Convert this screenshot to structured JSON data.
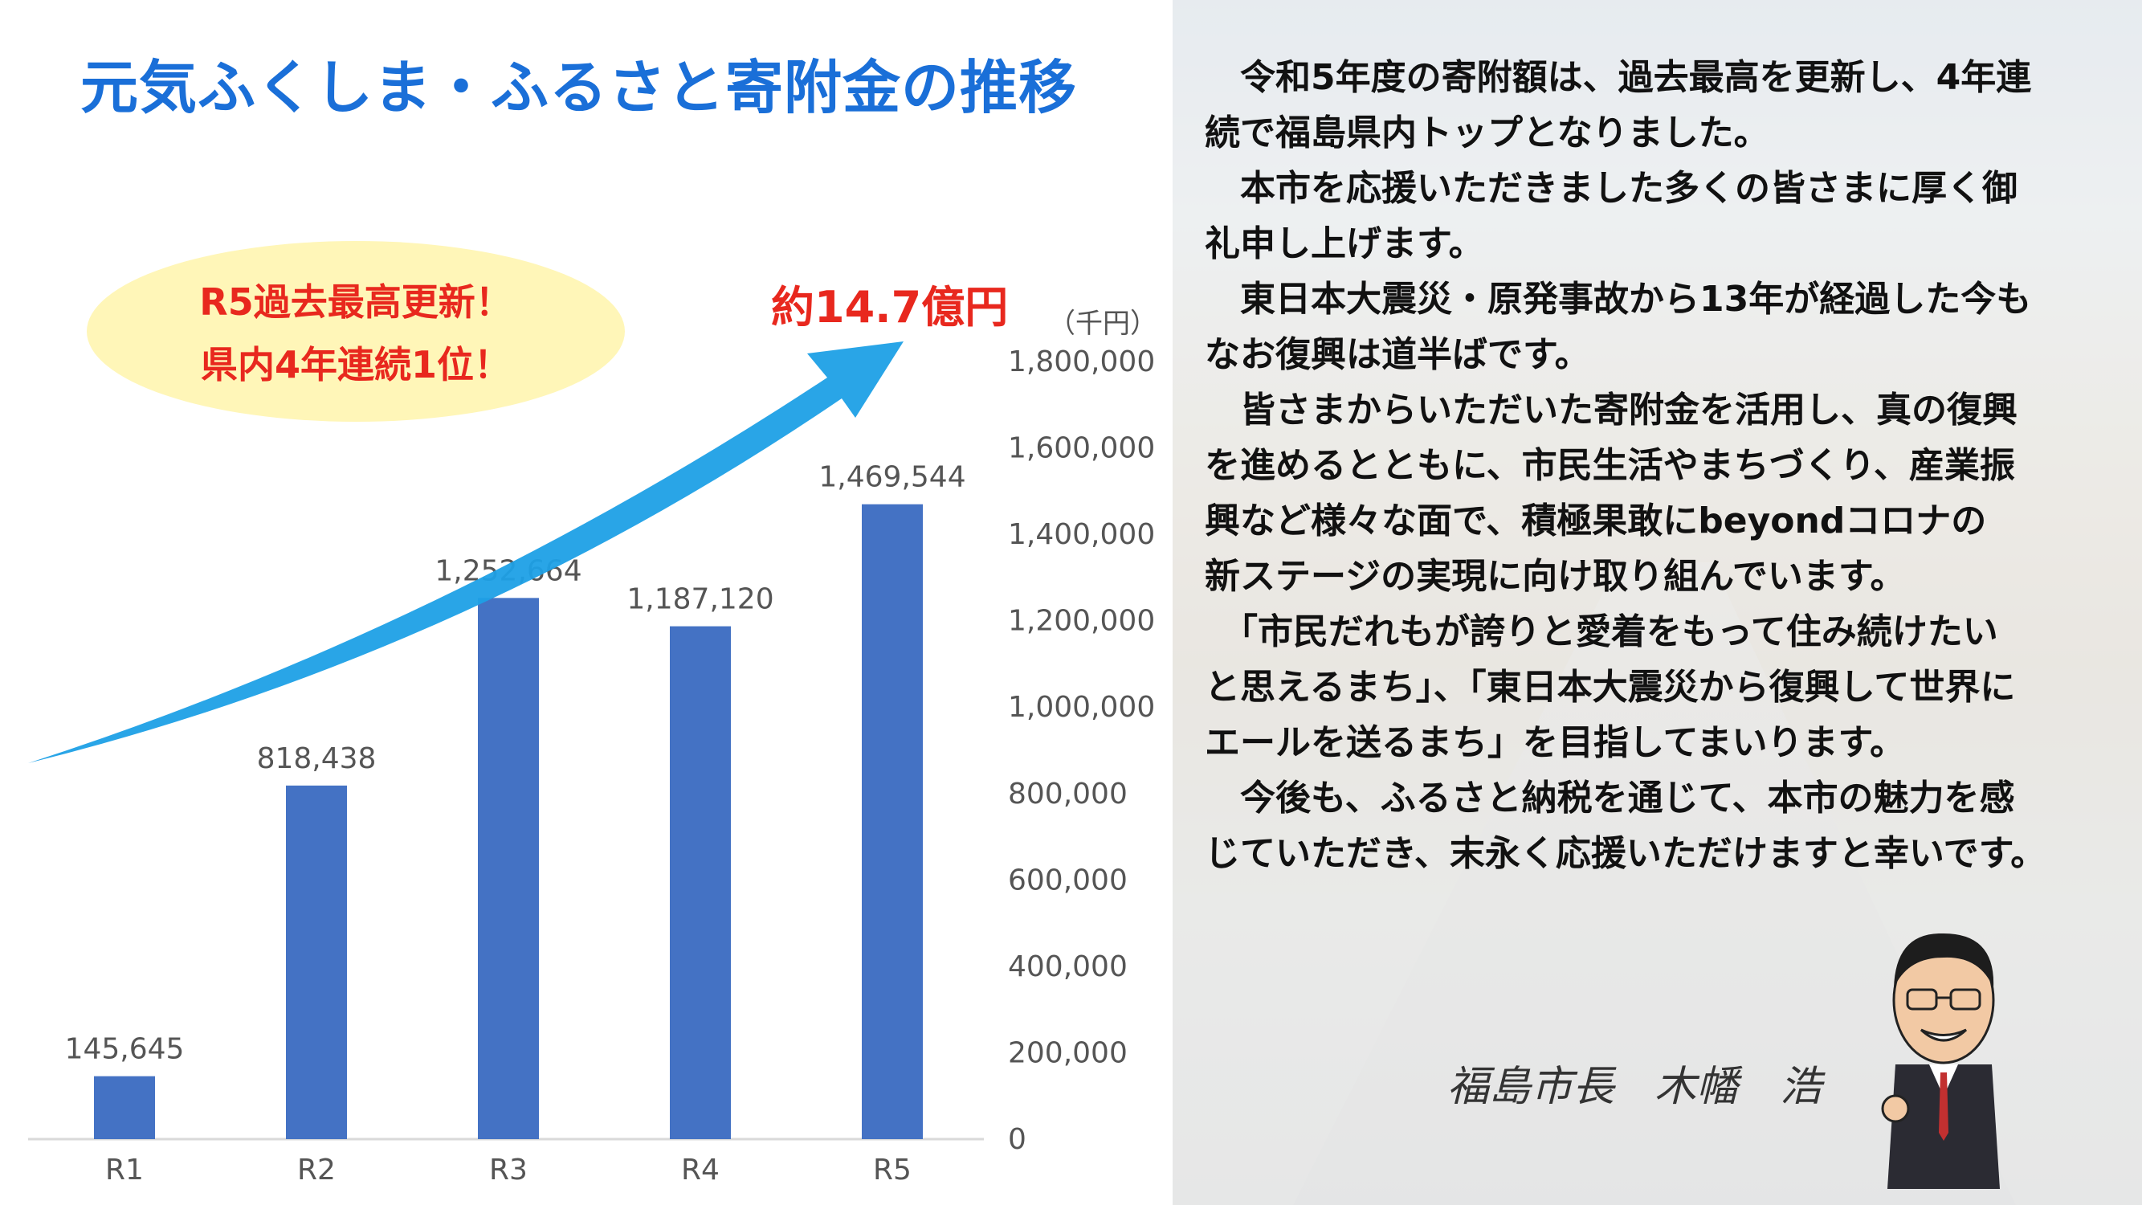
{
  "title": "元気ふくしま・ふるさと寄附金の推移",
  "callout": {
    "line1": "R5過去最高更新！",
    "line2": "県内4年連続1位！"
  },
  "headline": "約14.7億円",
  "unit": "（千円）",
  "chart_data": {
    "type": "bar",
    "categories": [
      "R1",
      "R2",
      "R3",
      "R4",
      "R5"
    ],
    "values": [
      145645,
      818438,
      1252664,
      1187120,
      1469544
    ],
    "value_labels": [
      "145,645",
      "818,438",
      "1,252,664",
      "1,187,120",
      "1,469,544"
    ],
    "yticks": [
      "0",
      "200,000",
      "400,000",
      "600,000",
      "800,000",
      "1,000,000",
      "1,200,000",
      "1,400,000",
      "1,600,000",
      "1,800,000"
    ],
    "ylim": [
      0,
      1800000
    ],
    "y_axis_side": "right",
    "grid": false,
    "bar_color": "#4472c4",
    "arrow_color": "#1ea0e6"
  },
  "message": [
    "　令和5年度の寄附額は、過去最高を更新し、4年連",
    "続で福島県内トップとなりました。",
    "　本市を応援いただきました多くの皆さまに厚く御",
    "礼申し上げます。",
    "　東日本大震災・原発事故から13年が経過した今も",
    "なお復興は道半ばです。",
    "　皆さまからいただいた寄附金を活用し、真の復興",
    "を進めるとともに、市民生活やまちづくり、産業振",
    "興など様々な面で、積極果敢にbeyondコロナの",
    "新ステージの実現に向け取り組んでいます。",
    "　「市民だれもが誇りと愛着をもって住み続けたい",
    "と思えるまち」、「東日本大震災から復興して世界に",
    "エールを送るまち」を目指してまいります。",
    "　今後も、ふるさと納税を通じて、本市の魅力を感",
    "じていただき、末永く応援いただけますと幸いです。"
  ],
  "signature": {
    "role": "福島市長",
    "name": "木幡　浩"
  },
  "colors": {
    "title": "#1a6fd8",
    "emphasis": "#e8281e",
    "callout_bg": "#fff6b8"
  }
}
